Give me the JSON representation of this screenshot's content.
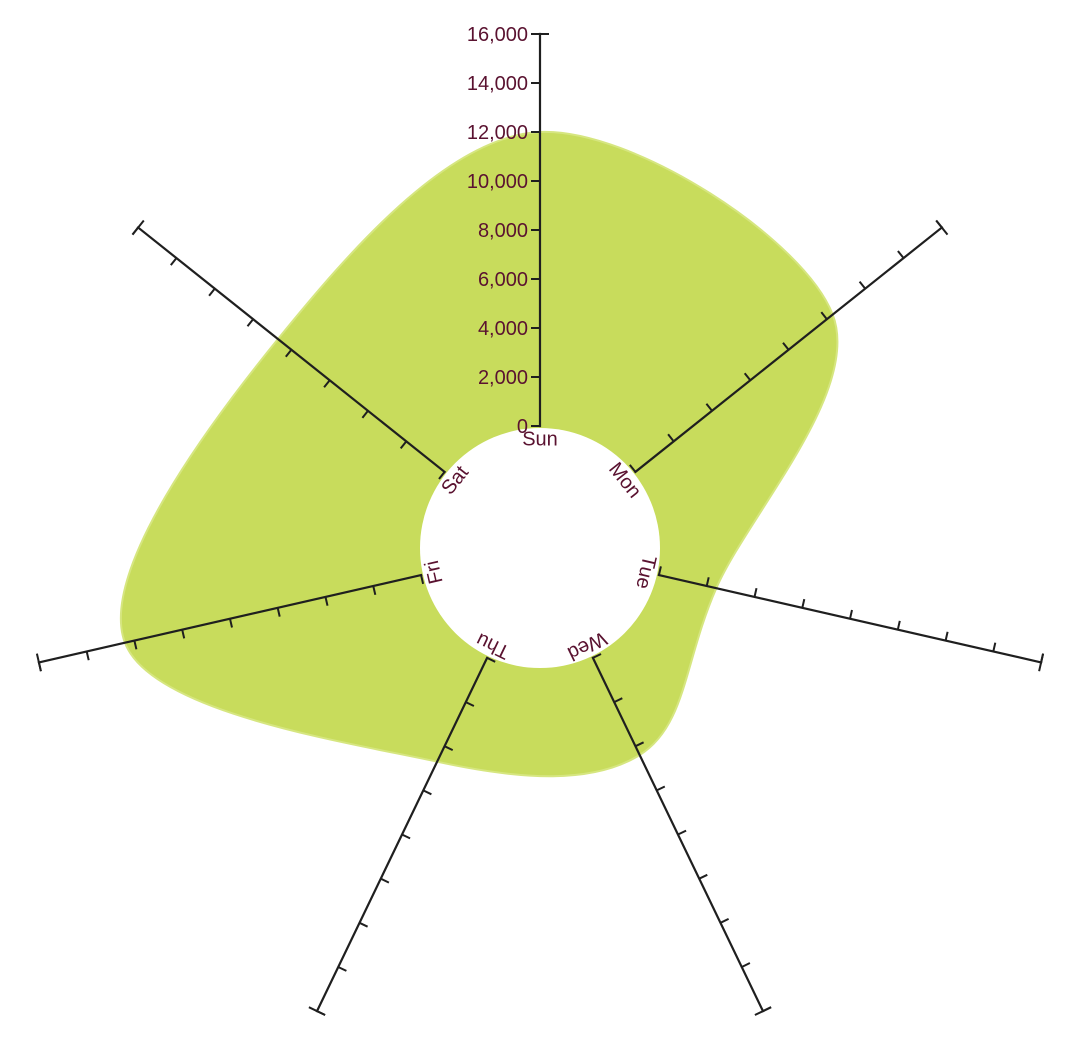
{
  "chart_data": {
    "type": "area",
    "layout": "radial",
    "title": "",
    "xlabel": "",
    "ylabel": "",
    "ylim": [
      0,
      16000
    ],
    "tick_values": [
      0,
      2000,
      4000,
      6000,
      8000,
      10000,
      12000,
      14000,
      16000
    ],
    "tick_labels": [
      "0",
      "2,000",
      "4,000",
      "6,000",
      "8,000",
      "10,000",
      "12,000",
      "14,000",
      "16,000"
    ],
    "categories": [
      "Sun",
      "Mon",
      "Tue",
      "Wed",
      "Thu",
      "Fri",
      "Sat"
    ],
    "series": [
      {
        "values": [
          12000,
          10300,
          2400,
          4400,
          4700,
          12400,
          8700
        ]
      }
    ],
    "colors": {
      "area": "#c8dc5c",
      "axis": "#1f1f1f",
      "labels": "#5a1230"
    }
  }
}
